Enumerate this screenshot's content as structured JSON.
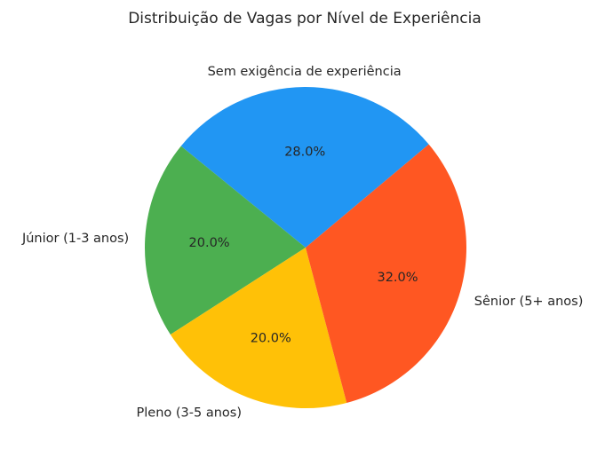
{
  "chart_data": {
    "type": "pie",
    "title": "Distribuição de Vagas por Nível de Experiência",
    "slices": [
      {
        "label": "Sem exigência de experiência",
        "value": 28.0,
        "pct_label": "28.0%",
        "color": "#2196F3"
      },
      {
        "label": "Júnior (1-3 anos)",
        "value": 20.0,
        "pct_label": "20.0%",
        "color": "#4CAF50"
      },
      {
        "label": "Pleno (3-5 anos)",
        "value": 20.0,
        "pct_label": "20.0%",
        "color": "#FFC107"
      },
      {
        "label": "Sênior (5+ anos)",
        "value": 32.0,
        "pct_label": "32.0%",
        "color": "#FF5722"
      }
    ],
    "start_angle_deg": 40,
    "direction": "counterclockwise"
  }
}
